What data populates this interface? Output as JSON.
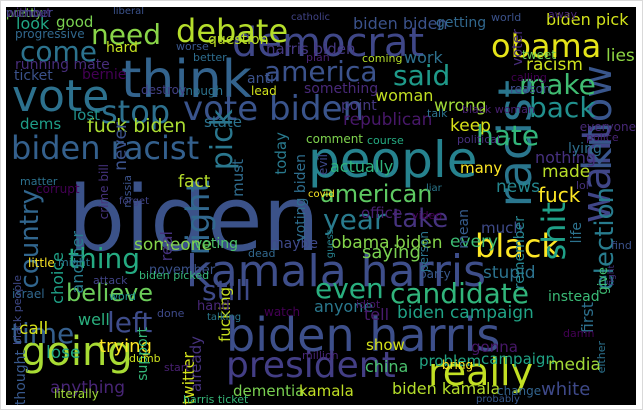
{
  "word_cloud": {
    "background": "#000000",
    "words": [
      {
        "text": "biden",
        "color": "#3b5289"
      },
      {
        "text": "kamala harris",
        "color": "#3e4e8a"
      },
      {
        "text": "biden harris",
        "color": "#3d4f8a"
      },
      {
        "text": "people",
        "color": "#26828e"
      },
      {
        "text": "think",
        "color": "#33638d"
      },
      {
        "text": "vote",
        "color": "#2d718e"
      },
      {
        "text": "democrat",
        "color": "#3f4788"
      },
      {
        "text": "racist",
        "color": "#2a768e"
      },
      {
        "text": "going",
        "color": "#a8db34"
      },
      {
        "text": "really",
        "color": "#c2df23"
      },
      {
        "text": "president",
        "color": "#433e85"
      },
      {
        "text": "want",
        "color": "#404688"
      },
      {
        "text": "know",
        "color": "#39568c"
      },
      {
        "text": "vote biden",
        "color": "#3a548c"
      },
      {
        "text": "biden racist",
        "color": "#34608d"
      },
      {
        "text": "debate",
        "color": "#b5de2b"
      },
      {
        "text": "need",
        "color": "#89d548"
      },
      {
        "text": "obama",
        "color": "#e5e419"
      },
      {
        "text": "stop",
        "color": "#2d708e"
      },
      {
        "text": "america",
        "color": "#3b528b"
      },
      {
        "text": "said",
        "color": "#1f9a8a"
      },
      {
        "text": "make",
        "color": "#40bd72"
      },
      {
        "text": "back",
        "color": "#21908d"
      },
      {
        "text": "hate",
        "color": "#32b67a"
      },
      {
        "text": "come",
        "color": "#2c738e"
      },
      {
        "text": "black",
        "color": "#fde725"
      },
      {
        "text": "shit",
        "color": "#1fa088"
      },
      {
        "text": "thing",
        "color": "#25ab82"
      },
      {
        "text": "still",
        "color": "#3e4a89"
      },
      {
        "text": "even",
        "color": "#29af7f"
      },
      {
        "text": "left",
        "color": "#3e4c8a"
      },
      {
        "text": "time",
        "color": "#355f8d"
      },
      {
        "text": "right",
        "color": "#31688e"
      },
      {
        "text": "candidate",
        "color": "#31b57b"
      },
      {
        "text": "election",
        "color": "#287c8e"
      },
      {
        "text": "take",
        "color": "#46337f"
      },
      {
        "text": "year",
        "color": "#297b8e"
      },
      {
        "text": "american",
        "color": "#5ec962"
      },
      {
        "text": "believe",
        "color": "#6ccd5a"
      },
      {
        "text": "country",
        "color": "#31668e"
      },
      {
        "text": "pick",
        "color": "#2a778e"
      },
      {
        "text": "biden pick",
        "color": "#d2e21b"
      },
      {
        "text": "good",
        "color": "#7ad151"
      },
      {
        "text": "look",
        "color": "#21a685"
      },
      {
        "text": "liberal",
        "color": "#3b528b"
      },
      {
        "text": "harris biden",
        "color": "#453781"
      },
      {
        "text": "work",
        "color": "#2d708e"
      },
      {
        "text": "republican",
        "color": "#48186a"
      },
      {
        "text": "fuck biden",
        "color": "#aadc32"
      },
      {
        "text": "nothing",
        "color": "#46307e"
      },
      {
        "text": "made",
        "color": "#b8de29"
      },
      {
        "text": "fuck",
        "color": "#fde725"
      },
      {
        "text": "wrong",
        "color": "#a0da39"
      },
      {
        "text": "keep",
        "color": "#d8e219"
      },
      {
        "text": "never",
        "color": "#3b528b"
      },
      {
        "text": "state",
        "color": "#2c728e"
      },
      {
        "text": "racism",
        "color": "#cde11d"
      },
      {
        "text": "lies",
        "color": "#8fd744"
      },
      {
        "text": "hard",
        "color": "#c5e021"
      },
      {
        "text": "ticket",
        "color": "#3b528b"
      },
      {
        "text": "lost",
        "color": "#21918c"
      },
      {
        "text": "dems",
        "color": "#1f9e89"
      },
      {
        "text": "bernie",
        "color": "#440154"
      },
      {
        "text": "running mate",
        "color": "#472d7b"
      },
      {
        "text": "progressive",
        "color": "#31688e"
      },
      {
        "text": "question",
        "color": "#bddf26"
      },
      {
        "text": "someone",
        "color": "#84d44b"
      },
      {
        "text": "voting",
        "color": "#4ec36b"
      },
      {
        "text": "maybe",
        "color": "#3e4989"
      },
      {
        "text": "obama biden",
        "color": "#84d44b"
      },
      {
        "text": "office",
        "color": "#482071"
      },
      {
        "text": "saying",
        "color": "#7ad151"
      },
      {
        "text": "stupid",
        "color": "#2c728e"
      },
      {
        "text": "anyone",
        "color": "#2a788e"
      },
      {
        "text": "tell",
        "color": "#481b6d"
      },
      {
        "text": "show",
        "color": "#d5e21a"
      },
      {
        "text": "trying",
        "color": "#fde725"
      },
      {
        "text": "lose",
        "color": "#22a884"
      },
      {
        "text": "support",
        "color": "#35b779"
      },
      {
        "text": "anything",
        "color": "#482576"
      },
      {
        "text": "dementia",
        "color": "#7ad151"
      },
      {
        "text": "kamala",
        "color": "#c0df25"
      },
      {
        "text": "biden kamala",
        "color": "#b5de2b"
      },
      {
        "text": "white",
        "color": "#3e4989"
      },
      {
        "text": "china",
        "color": "#4ac16d"
      },
      {
        "text": "problem",
        "color": "#22a785"
      },
      {
        "text": "campaign",
        "color": "#20a486"
      },
      {
        "text": "media",
        "color": "#a2da37"
      },
      {
        "text": "first",
        "color": "#2d708e"
      },
      {
        "text": "biden campaign",
        "color": "#20a386"
      },
      {
        "text": "call",
        "color": "#d8e219"
      },
      {
        "text": "well",
        "color": "#2ab07f"
      },
      {
        "text": "real",
        "color": "#46327e"
      },
      {
        "text": "fact",
        "color": "#b5de2b"
      },
      {
        "text": "must",
        "color": "#2f6c8e"
      },
      {
        "text": "actually",
        "color": "#2fb47c"
      },
      {
        "text": "many",
        "color": "#fde725"
      },
      {
        "text": "much",
        "color": "#3e4a89"
      },
      {
        "text": "every",
        "color": "#3dbc74"
      },
      {
        "text": "news",
        "color": "#24868e"
      },
      {
        "text": "choice",
        "color": "#1fa187"
      },
      {
        "text": "another",
        "color": "#287c8e"
      },
      {
        "text": "thought",
        "color": "#38588c"
      },
      {
        "text": "twitter",
        "color": "#d2e21b"
      },
      {
        "text": "already",
        "color": "#46327e"
      },
      {
        "text": "fucking",
        "color": "#c8e020"
      },
      {
        "text": "today",
        "color": "#297a8e"
      },
      {
        "text": "voting biden",
        "color": "#2e6e8e"
      },
      {
        "text": "point",
        "color": "#453882"
      },
      {
        "text": "woman",
        "color": "#c2df23"
      },
      {
        "text": "something",
        "color": "#482979"
      },
      {
        "text": "november",
        "color": "#3b528b"
      },
      {
        "text": "lying",
        "color": "#2e6f8e"
      },
      {
        "text": "life",
        "color": "#2c728e"
      },
      {
        "text": "remember",
        "color": "#25848e"
      },
      {
        "text": "mean",
        "color": "#365c8d"
      },
      {
        "text": "person",
        "color": "#2b748e"
      },
      {
        "text": "party",
        "color": "#38598c"
      },
      {
        "text": "give",
        "color": "#3fbc73"
      },
      {
        "text": "instead",
        "color": "#3aba76"
      },
      {
        "text": "gonna",
        "color": "#48186a"
      },
      {
        "text": "bring",
        "color": "#fde725"
      },
      {
        "text": "literally",
        "color": "#a0da39"
      },
      {
        "text": "dumb",
        "color": "#cde11d"
      },
      {
        "text": "harris ticket",
        "color": "#35b779"
      },
      {
        "text": "million",
        "color": "#482677"
      },
      {
        "text": "change",
        "color": "#32648e"
      },
      {
        "text": "getting",
        "color": "#31688e"
      },
      {
        "text": "biden biden",
        "color": "#3b528b"
      },
      {
        "text": "voter",
        "color": "#472c7a"
      },
      {
        "text": "tweet",
        "color": "#6ece58"
      },
      {
        "text": "everyone",
        "color": "#482878"
      },
      {
        "text": "reason",
        "color": "#3e4c8a"
      },
      {
        "text": "calling",
        "color": "#440154"
      },
      {
        "text": "police",
        "color": "#482374"
      },
      {
        "text": "political",
        "color": "#472f7d"
      },
      {
        "text": "comment",
        "color": "#7fd34e"
      },
      {
        "text": "course",
        "color": "#25ac82"
      },
      {
        "text": "black woman",
        "color": "#482071"
      },
      {
        "text": "talk",
        "color": "#2c738e"
      },
      {
        "text": "anti",
        "color": "#3b528b"
      },
      {
        "text": "lead",
        "color": "#d0e11c"
      },
      {
        "text": "enough",
        "color": "#2c738e"
      },
      {
        "text": "destroy",
        "color": "#424086"
      },
      {
        "text": "worse",
        "color": "#39568c"
      },
      {
        "text": "better",
        "color": "#2e6d8e"
      },
      {
        "text": "plan",
        "color": "#482173"
      },
      {
        "text": "coming",
        "color": "#b5de2b"
      },
      {
        "text": "catholic",
        "color": "#414487"
      },
      {
        "text": "world",
        "color": "#3b528b"
      },
      {
        "text": "away",
        "color": "#482677"
      },
      {
        "text": "dead",
        "color": "#31688e"
      },
      {
        "text": "video",
        "color": "#440154"
      },
      {
        "text": "covid",
        "color": "#fde725"
      },
      {
        "text": "talking",
        "color": "#2a788e"
      },
      {
        "text": "watch",
        "color": "#440154"
      },
      {
        "text": "evil",
        "color": "#3e4989"
      },
      {
        "text": "guess",
        "color": "#26828e"
      },
      {
        "text": "idiot",
        "color": "#48186a"
      },
      {
        "text": "either",
        "color": "#2c728e"
      },
      {
        "text": "probably",
        "color": "#38588c"
      },
      {
        "text": "crime bill",
        "color": "#46337e"
      },
      {
        "text": "corrupt",
        "color": "#440154"
      },
      {
        "text": "matter",
        "color": "#2c728e"
      },
      {
        "text": "little",
        "color": "#fde725"
      },
      {
        "text": "russia",
        "color": "#3b528b"
      },
      {
        "text": "israel",
        "color": "#31688e"
      },
      {
        "text": "black people",
        "color": "#3e4989"
      },
      {
        "text": "might",
        "color": "#2a788e"
      },
      {
        "text": "attack",
        "color": "#414487"
      },
      {
        "text": "word",
        "color": "#21918c"
      },
      {
        "text": "biden picked",
        "color": "#35b779"
      },
      {
        "text": "hand",
        "color": "#482878"
      },
      {
        "text": "done",
        "color": "#3e4a89"
      },
      {
        "text": "find",
        "color": "#3b528b"
      },
      {
        "text": "lol",
        "color": "#46327e"
      },
      {
        "text": "liar",
        "color": "#2a788e"
      },
      {
        "text": "damn",
        "color": "#440154"
      },
      {
        "text": "forget",
        "color": "#414487"
      },
      {
        "text": "start",
        "color": "#482071"
      },
      {
        "text": "fight",
        "color": "#46327e"
      },
      {
        "text": "pretty",
        "color": "#7ad151"
      },
      {
        "text": "without",
        "color": "#482878"
      },
      {
        "text": "number",
        "color": "#414487"
      }
    ]
  }
}
